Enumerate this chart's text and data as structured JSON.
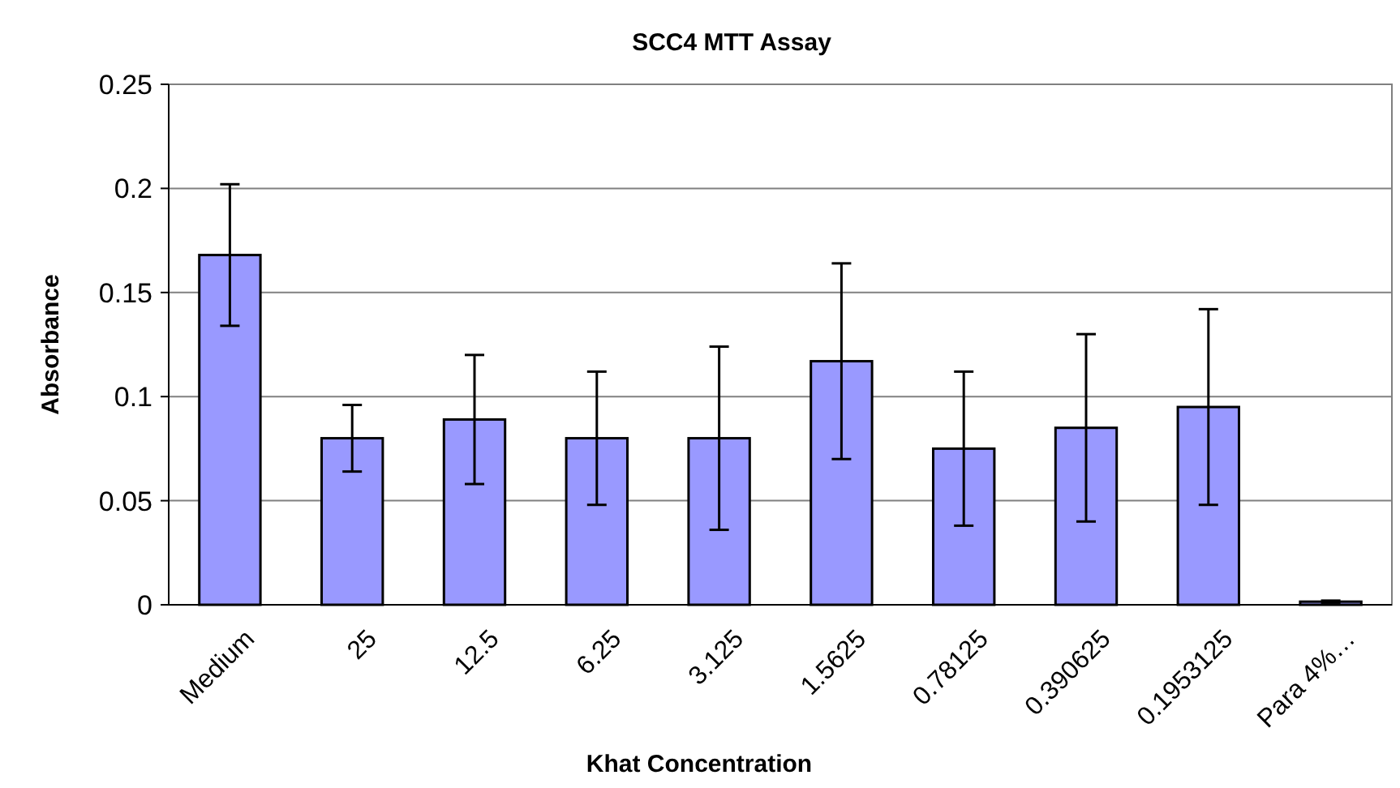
{
  "chart_data": {
    "type": "bar",
    "title": "SCC4 MTT Assay",
    "xlabel": "Khat Concentration",
    "ylabel": "Absorbance",
    "categories": [
      "Medium",
      "25",
      "12.5",
      "6.25",
      "3.125",
      "1.5625",
      "0.78125",
      "0.390625",
      "0.1953125",
      "Para 4%…"
    ],
    "values": [
      0.168,
      0.08,
      0.089,
      0.08,
      0.08,
      0.117,
      0.075,
      0.085,
      0.095,
      0.0015
    ],
    "errors": [
      0.034,
      0.016,
      0.031,
      0.032,
      0.044,
      0.047,
      0.037,
      0.045,
      0.047,
      0.0005
    ],
    "color": "#9999ff",
    "ylim": [
      0,
      0.25
    ],
    "yticks": [
      0,
      0.05,
      0.1,
      0.15,
      0.2,
      0.25
    ],
    "grid": "y"
  }
}
